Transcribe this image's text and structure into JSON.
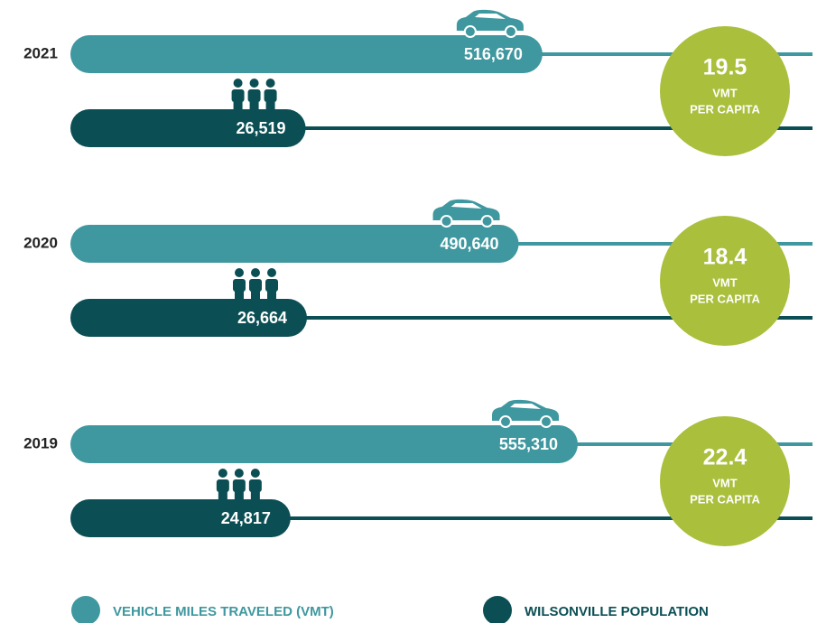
{
  "chart_data": {
    "type": "bar",
    "categories": [
      "2021",
      "2020",
      "2019"
    ],
    "series": [
      {
        "name": "VEHICLE MILES TRAVELED (VMT)",
        "color": "#3f979f",
        "values": [
          516670,
          490640,
          555310
        ],
        "value_labels": [
          "516,670",
          "490,640",
          "555,310"
        ]
      },
      {
        "name": "WILSONVILLE POPULATION",
        "color": "#0b4f55",
        "values": [
          26519,
          26664,
          24817
        ],
        "value_labels": [
          "26,519",
          "26,664",
          "24,817"
        ]
      }
    ],
    "per_capita": {
      "values": [
        19.5,
        18.4,
        22.4
      ],
      "color": "#aabf3c",
      "label": "VMT",
      "label2": "PER CAPITA"
    }
  }
}
